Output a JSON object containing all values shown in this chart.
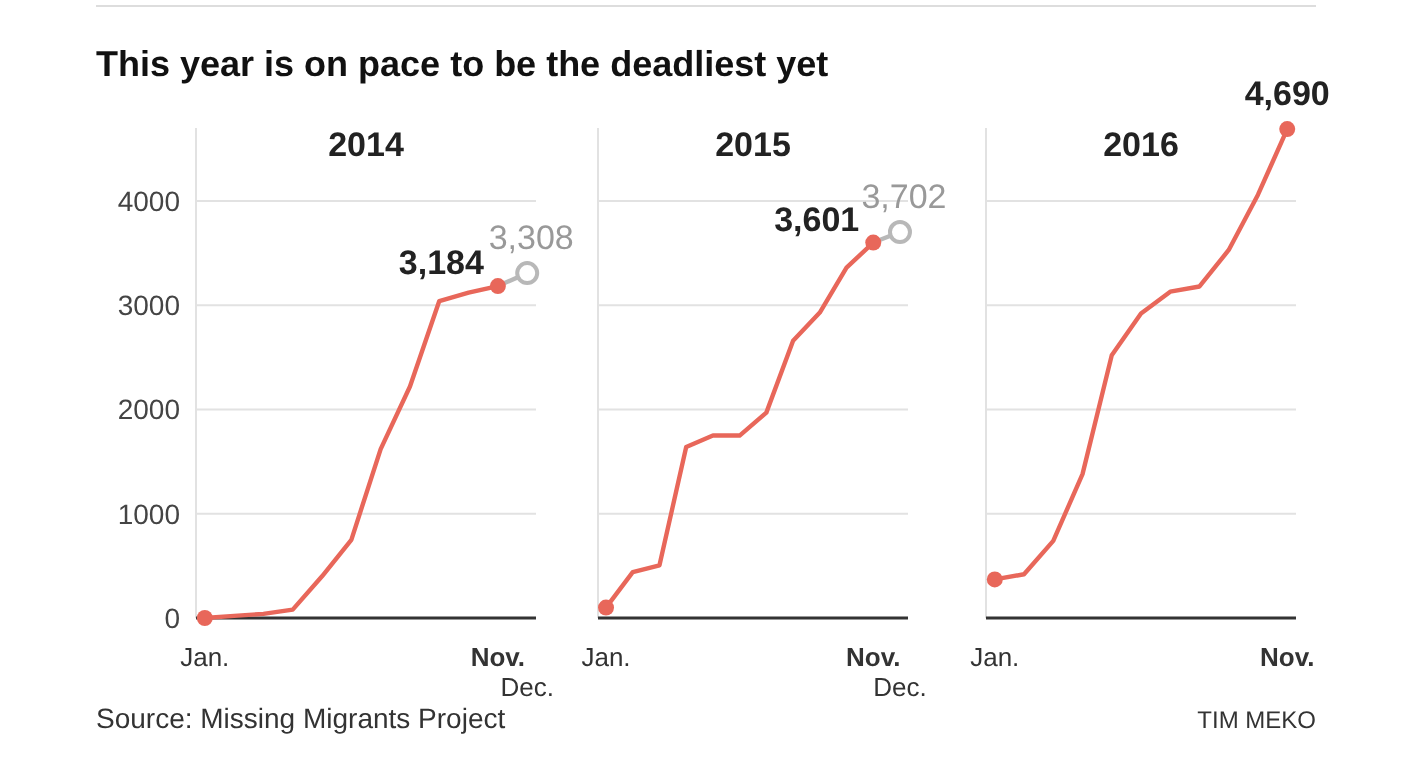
{
  "chart_data": [
    {
      "type": "line",
      "title": "2014",
      "annotations": [
        "This year is on pace to be the deadliest yet",
        "Source: Missing Migrants Project",
        "TIM MEKO"
      ],
      "categories": [
        "Jan.",
        null,
        null,
        null,
        null,
        null,
        null,
        null,
        null,
        null,
        "Nov.",
        "Dec."
      ],
      "ylim": [
        0,
        4700
      ],
      "yticks": [
        0,
        1000,
        2000,
        3000,
        4000
      ],
      "grid": "y",
      "series": [
        {
          "color": "#b8b8b8",
          "values": [
            null,
            null,
            null,
            null,
            null,
            null,
            null,
            null,
            null,
            null,
            3184,
            3308
          ],
          "value_labels": [
            null,
            null,
            null,
            null,
            null,
            null,
            null,
            null,
            null,
            null,
            null,
            "3,308"
          ]
        },
        {
          "color": "#e8675a",
          "values": [
            0,
            20,
            40,
            80,
            400,
            750,
            1620,
            2220,
            3040,
            3120,
            3184,
            null
          ],
          "value_labels": [
            null,
            null,
            null,
            null,
            null,
            null,
            null,
            null,
            null,
            null,
            "3,184",
            null
          ]
        }
      ]
    },
    {
      "type": "line",
      "title": "2015",
      "tick_labels": "x",
      "categories": [
        "Jan.",
        null,
        null,
        null,
        null,
        null,
        null,
        null,
        null,
        null,
        "Nov.",
        "Dec."
      ],
      "ylim": [
        0,
        4700
      ],
      "yticks": [
        0,
        1000,
        2000,
        3000,
        4000
      ],
      "grid": "y",
      "series": [
        {
          "color": "#b8b8b8",
          "values": [
            null,
            null,
            null,
            null,
            null,
            null,
            null,
            null,
            null,
            null,
            3601,
            3702
          ],
          "value_labels": [
            null,
            null,
            null,
            null,
            null,
            null,
            null,
            null,
            null,
            null,
            null,
            "3,702"
          ]
        },
        {
          "color": "#e8675a",
          "values": [
            100,
            440,
            505,
            1640,
            1750,
            1750,
            1970,
            2660,
            2930,
            3360,
            3601,
            null
          ],
          "value_labels": [
            null,
            null,
            null,
            null,
            null,
            null,
            null,
            null,
            null,
            null,
            "3,601",
            null
          ]
        }
      ]
    },
    {
      "type": "line",
      "title": "2016",
      "tick_labels": "x",
      "categories": [
        "Jan.",
        null,
        null,
        null,
        null,
        null,
        null,
        null,
        null,
        null,
        "Nov."
      ],
      "ylim": [
        0,
        4700
      ],
      "yticks": [
        0,
        1000,
        2000,
        3000,
        4000
      ],
      "grid": "y",
      "series": [
        {
          "color": "#e8675a",
          "values": [
            370,
            420,
            740,
            1380,
            2520,
            2920,
            3130,
            3180,
            3530,
            4060,
            4690
          ],
          "value_labels": [
            null,
            null,
            null,
            null,
            null,
            null,
            null,
            null,
            null,
            null,
            "4,690"
          ]
        }
      ]
    }
  ]
}
